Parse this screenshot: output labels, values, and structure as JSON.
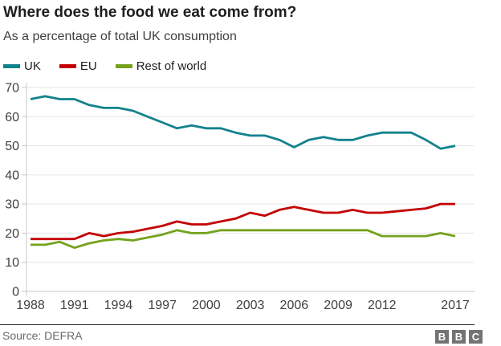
{
  "title": "Where does the food we eat come from?",
  "subtitle": "As a percentage of total UK consumption",
  "legend": [
    {
      "label": "UK",
      "color": "#12828C"
    },
    {
      "label": "EU",
      "color": "#C40000"
    },
    {
      "label": "Rest of world",
      "color": "#74A21C"
    }
  ],
  "source": "Source: DEFRA",
  "logo_letters": [
    "B",
    "B",
    "C"
  ],
  "colors": {
    "uk_line": "#12828C",
    "eu_line": "#C40000",
    "row_line": "#74A21C",
    "gridline": "#E6E6E6",
    "axis": "#C9C9C9",
    "tick_text": "#404040"
  },
  "chart_data": {
    "type": "line",
    "x": [
      1988,
      1989,
      1990,
      1991,
      1992,
      1993,
      1994,
      1995,
      1996,
      1997,
      1998,
      1999,
      2000,
      2001,
      2002,
      2003,
      2004,
      2005,
      2006,
      2007,
      2008,
      2009,
      2010,
      2011,
      2012,
      2013,
      2014,
      2015,
      2016,
      2017
    ],
    "series": [
      {
        "id": "uk",
        "name": "UK",
        "color": "#12828C",
        "values": [
          66,
          67,
          66,
          66,
          64,
          63,
          63,
          62,
          60,
          58,
          56,
          57,
          56,
          56,
          54.5,
          53.5,
          53.5,
          52,
          49.5,
          52,
          53,
          52,
          52,
          53.5,
          54.5,
          54.5,
          54.5,
          52,
          49,
          50
        ]
      },
      {
        "id": "eu",
        "name": "EU",
        "color": "#C40000",
        "values": [
          18,
          18,
          18,
          18,
          20,
          19,
          20,
          20.5,
          21.5,
          22.5,
          24,
          23,
          23,
          24,
          25,
          27,
          26,
          28,
          29,
          28,
          27,
          27,
          28,
          27,
          27,
          27.5,
          28,
          28.5,
          30,
          30
        ]
      },
      {
        "id": "rest-of-world",
        "name": "Rest of world",
        "color": "#74A21C",
        "values": [
          16,
          16,
          17,
          15,
          16.5,
          17.5,
          18,
          17.5,
          18.5,
          19.5,
          21,
          20,
          20,
          21,
          21,
          21,
          21,
          21,
          21,
          21,
          21,
          21,
          21,
          21,
          19,
          19,
          19,
          19,
          20,
          19
        ]
      }
    ],
    "xticks": [
      1988,
      1991,
      1994,
      1997,
      2000,
      2003,
      2006,
      2009,
      2012,
      2017
    ],
    "yticks": [
      0,
      10,
      20,
      30,
      40,
      50,
      60,
      70
    ],
    "ylim": [
      0,
      70
    ],
    "grid": true,
    "legend_position": "top",
    "title": "Where does the food we eat come from?",
    "xlabel": "",
    "ylabel": ""
  }
}
